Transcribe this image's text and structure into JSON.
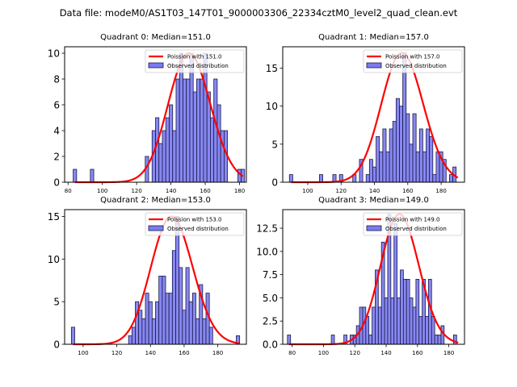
{
  "figure": {
    "suptitle": "Data file: modeM0/AS1T03_147T01_9000003306_22334cztM0_level2_quad_clean.evt"
  },
  "colors": {
    "bar_fill": "#7b7bf0",
    "bar_edge": "#1a1a4a",
    "poisson_line": "#ff0000",
    "axes": "#000000"
  },
  "chart_data": [
    {
      "type": "bar",
      "title": "Quadrant 0: Median=151.0",
      "xlabel": "",
      "ylabel": "",
      "xlim": [
        78,
        184
      ],
      "ylim": [
        0,
        10.5
      ],
      "xticks": [
        80,
        100,
        120,
        140,
        160,
        180
      ],
      "yticks": [
        0,
        2,
        4,
        6,
        8,
        10
      ],
      "ytick_labels": [
        "0",
        "2",
        "4",
        "6",
        "8",
        "10"
      ],
      "bin_width": 2,
      "bins": [
        [
          84,
          1
        ],
        [
          94,
          1
        ],
        [
          126,
          2
        ],
        [
          130,
          4
        ],
        [
          132,
          5
        ],
        [
          134,
          3
        ],
        [
          136,
          4
        ],
        [
          138,
          5
        ],
        [
          140,
          6
        ],
        [
          142,
          4
        ],
        [
          144,
          8
        ],
        [
          146,
          10
        ],
        [
          148,
          8
        ],
        [
          150,
          8
        ],
        [
          152,
          10
        ],
        [
          154,
          7
        ],
        [
          156,
          8
        ],
        [
          158,
          8
        ],
        [
          160,
          10
        ],
        [
          162,
          7
        ],
        [
          164,
          5
        ],
        [
          166,
          8
        ],
        [
          168,
          6
        ],
        [
          170,
          4
        ],
        [
          172,
          4
        ],
        [
          180,
          1
        ],
        [
          182,
          1
        ]
      ],
      "poisson_mean": 151.0,
      "poisson_peak": 10.0,
      "poisson_range": [
        84,
        182
      ],
      "legend": [
        "Poission with 151.0",
        "Observed distribution"
      ],
      "legend_loc": "upper right"
    },
    {
      "type": "bar",
      "title": "Quadrant 1: Median=157.0",
      "xlabel": "",
      "ylabel": "",
      "xlim": [
        85,
        194
      ],
      "ylim": [
        0,
        17.8
      ],
      "xticks": [
        100,
        120,
        140,
        160,
        180
      ],
      "yticks": [
        0,
        5,
        10,
        15
      ],
      "ytick_labels": [
        "0",
        "5",
        "10",
        "15"
      ],
      "bin_width": 2,
      "bins": [
        [
          90,
          1
        ],
        [
          108,
          1
        ],
        [
          116,
          1
        ],
        [
          120,
          1
        ],
        [
          128,
          1
        ],
        [
          132,
          3
        ],
        [
          136,
          1
        ],
        [
          138,
          3
        ],
        [
          140,
          2
        ],
        [
          142,
          6
        ],
        [
          144,
          4
        ],
        [
          146,
          7
        ],
        [
          148,
          4
        ],
        [
          150,
          7
        ],
        [
          152,
          8
        ],
        [
          154,
          11
        ],
        [
          156,
          10
        ],
        [
          158,
          17
        ],
        [
          160,
          9
        ],
        [
          162,
          5
        ],
        [
          164,
          9
        ],
        [
          166,
          4
        ],
        [
          168,
          7
        ],
        [
          170,
          4
        ],
        [
          172,
          7
        ],
        [
          174,
          6
        ],
        [
          176,
          1
        ],
        [
          178,
          4
        ],
        [
          180,
          4
        ],
        [
          182,
          3
        ],
        [
          186,
          1
        ],
        [
          188,
          2
        ]
      ],
      "poisson_mean": 157.0,
      "poisson_peak": 17.0,
      "poisson_range": [
        90,
        190
      ],
      "legend": [
        "Poission with 157.0",
        "Observed distribution"
      ],
      "legend_loc": "upper right"
    },
    {
      "type": "bar",
      "title": "Quadrant 2: Median=153.0",
      "xlabel": "",
      "ylabel": "",
      "xlim": [
        89,
        197
      ],
      "ylim": [
        0,
        15.8
      ],
      "xticks": [
        100,
        120,
        140,
        160,
        180
      ],
      "yticks": [
        0,
        5,
        10,
        15
      ],
      "ytick_labels": [
        "0",
        "5",
        "10",
        "15"
      ],
      "bin_width": 2,
      "bins": [
        [
          94,
          2
        ],
        [
          128,
          1
        ],
        [
          130,
          2
        ],
        [
          132,
          5
        ],
        [
          134,
          4
        ],
        [
          136,
          3
        ],
        [
          138,
          6
        ],
        [
          140,
          5
        ],
        [
          142,
          3
        ],
        [
          144,
          5
        ],
        [
          146,
          8
        ],
        [
          148,
          8
        ],
        [
          150,
          6
        ],
        [
          152,
          6
        ],
        [
          154,
          11
        ],
        [
          156,
          15
        ],
        [
          158,
          9
        ],
        [
          160,
          4
        ],
        [
          162,
          9
        ],
        [
          164,
          5
        ],
        [
          166,
          6
        ],
        [
          168,
          3
        ],
        [
          170,
          7
        ],
        [
          172,
          3
        ],
        [
          174,
          6
        ],
        [
          176,
          2
        ],
        [
          192,
          1
        ]
      ],
      "poisson_mean": 153.0,
      "poisson_peak": 15.0,
      "poisson_range": [
        94,
        193
      ],
      "legend": [
        "Poission with 153.0",
        "Observed distribution"
      ],
      "legend_loc": "upper right"
    },
    {
      "type": "bar",
      "title": "Quadrant 3: Median=149.0",
      "xlabel": "",
      "ylabel": "",
      "xlim": [
        74,
        190
      ],
      "ylim": [
        0,
        14.5
      ],
      "xticks": [
        80,
        100,
        120,
        140,
        160,
        180
      ],
      "yticks": [
        0,
        2.5,
        5,
        7.5,
        10,
        12.5
      ],
      "ytick_labels": [
        "0.0",
        "2.5",
        "5.0",
        "7.5",
        "10.0",
        "12.5"
      ],
      "bin_width": 2,
      "bins": [
        [
          78,
          1
        ],
        [
          106,
          1
        ],
        [
          114,
          1
        ],
        [
          118,
          1
        ],
        [
          120,
          1
        ],
        [
          122,
          2
        ],
        [
          124,
          4
        ],
        [
          126,
          4
        ],
        [
          128,
          3
        ],
        [
          130,
          1
        ],
        [
          132,
          4
        ],
        [
          134,
          8
        ],
        [
          136,
          4
        ],
        [
          138,
          11
        ],
        [
          140,
          5
        ],
        [
          142,
          14
        ],
        [
          144,
          5
        ],
        [
          146,
          13
        ],
        [
          148,
          5
        ],
        [
          150,
          8
        ],
        [
          152,
          7
        ],
        [
          154,
          7
        ],
        [
          156,
          5
        ],
        [
          158,
          4
        ],
        [
          160,
          7
        ],
        [
          162,
          3
        ],
        [
          164,
          7
        ],
        [
          166,
          3
        ],
        [
          168,
          7
        ],
        [
          170,
          3
        ],
        [
          172,
          1
        ],
        [
          174,
          1
        ],
        [
          176,
          2
        ],
        [
          184,
          1
        ]
      ],
      "poisson_mean": 149.0,
      "poisson_peak": 14.0,
      "poisson_range": [
        78,
        186
      ],
      "legend": [
        "Poission with 149.0",
        "Observed distribution"
      ],
      "legend_loc": "upper right"
    }
  ]
}
